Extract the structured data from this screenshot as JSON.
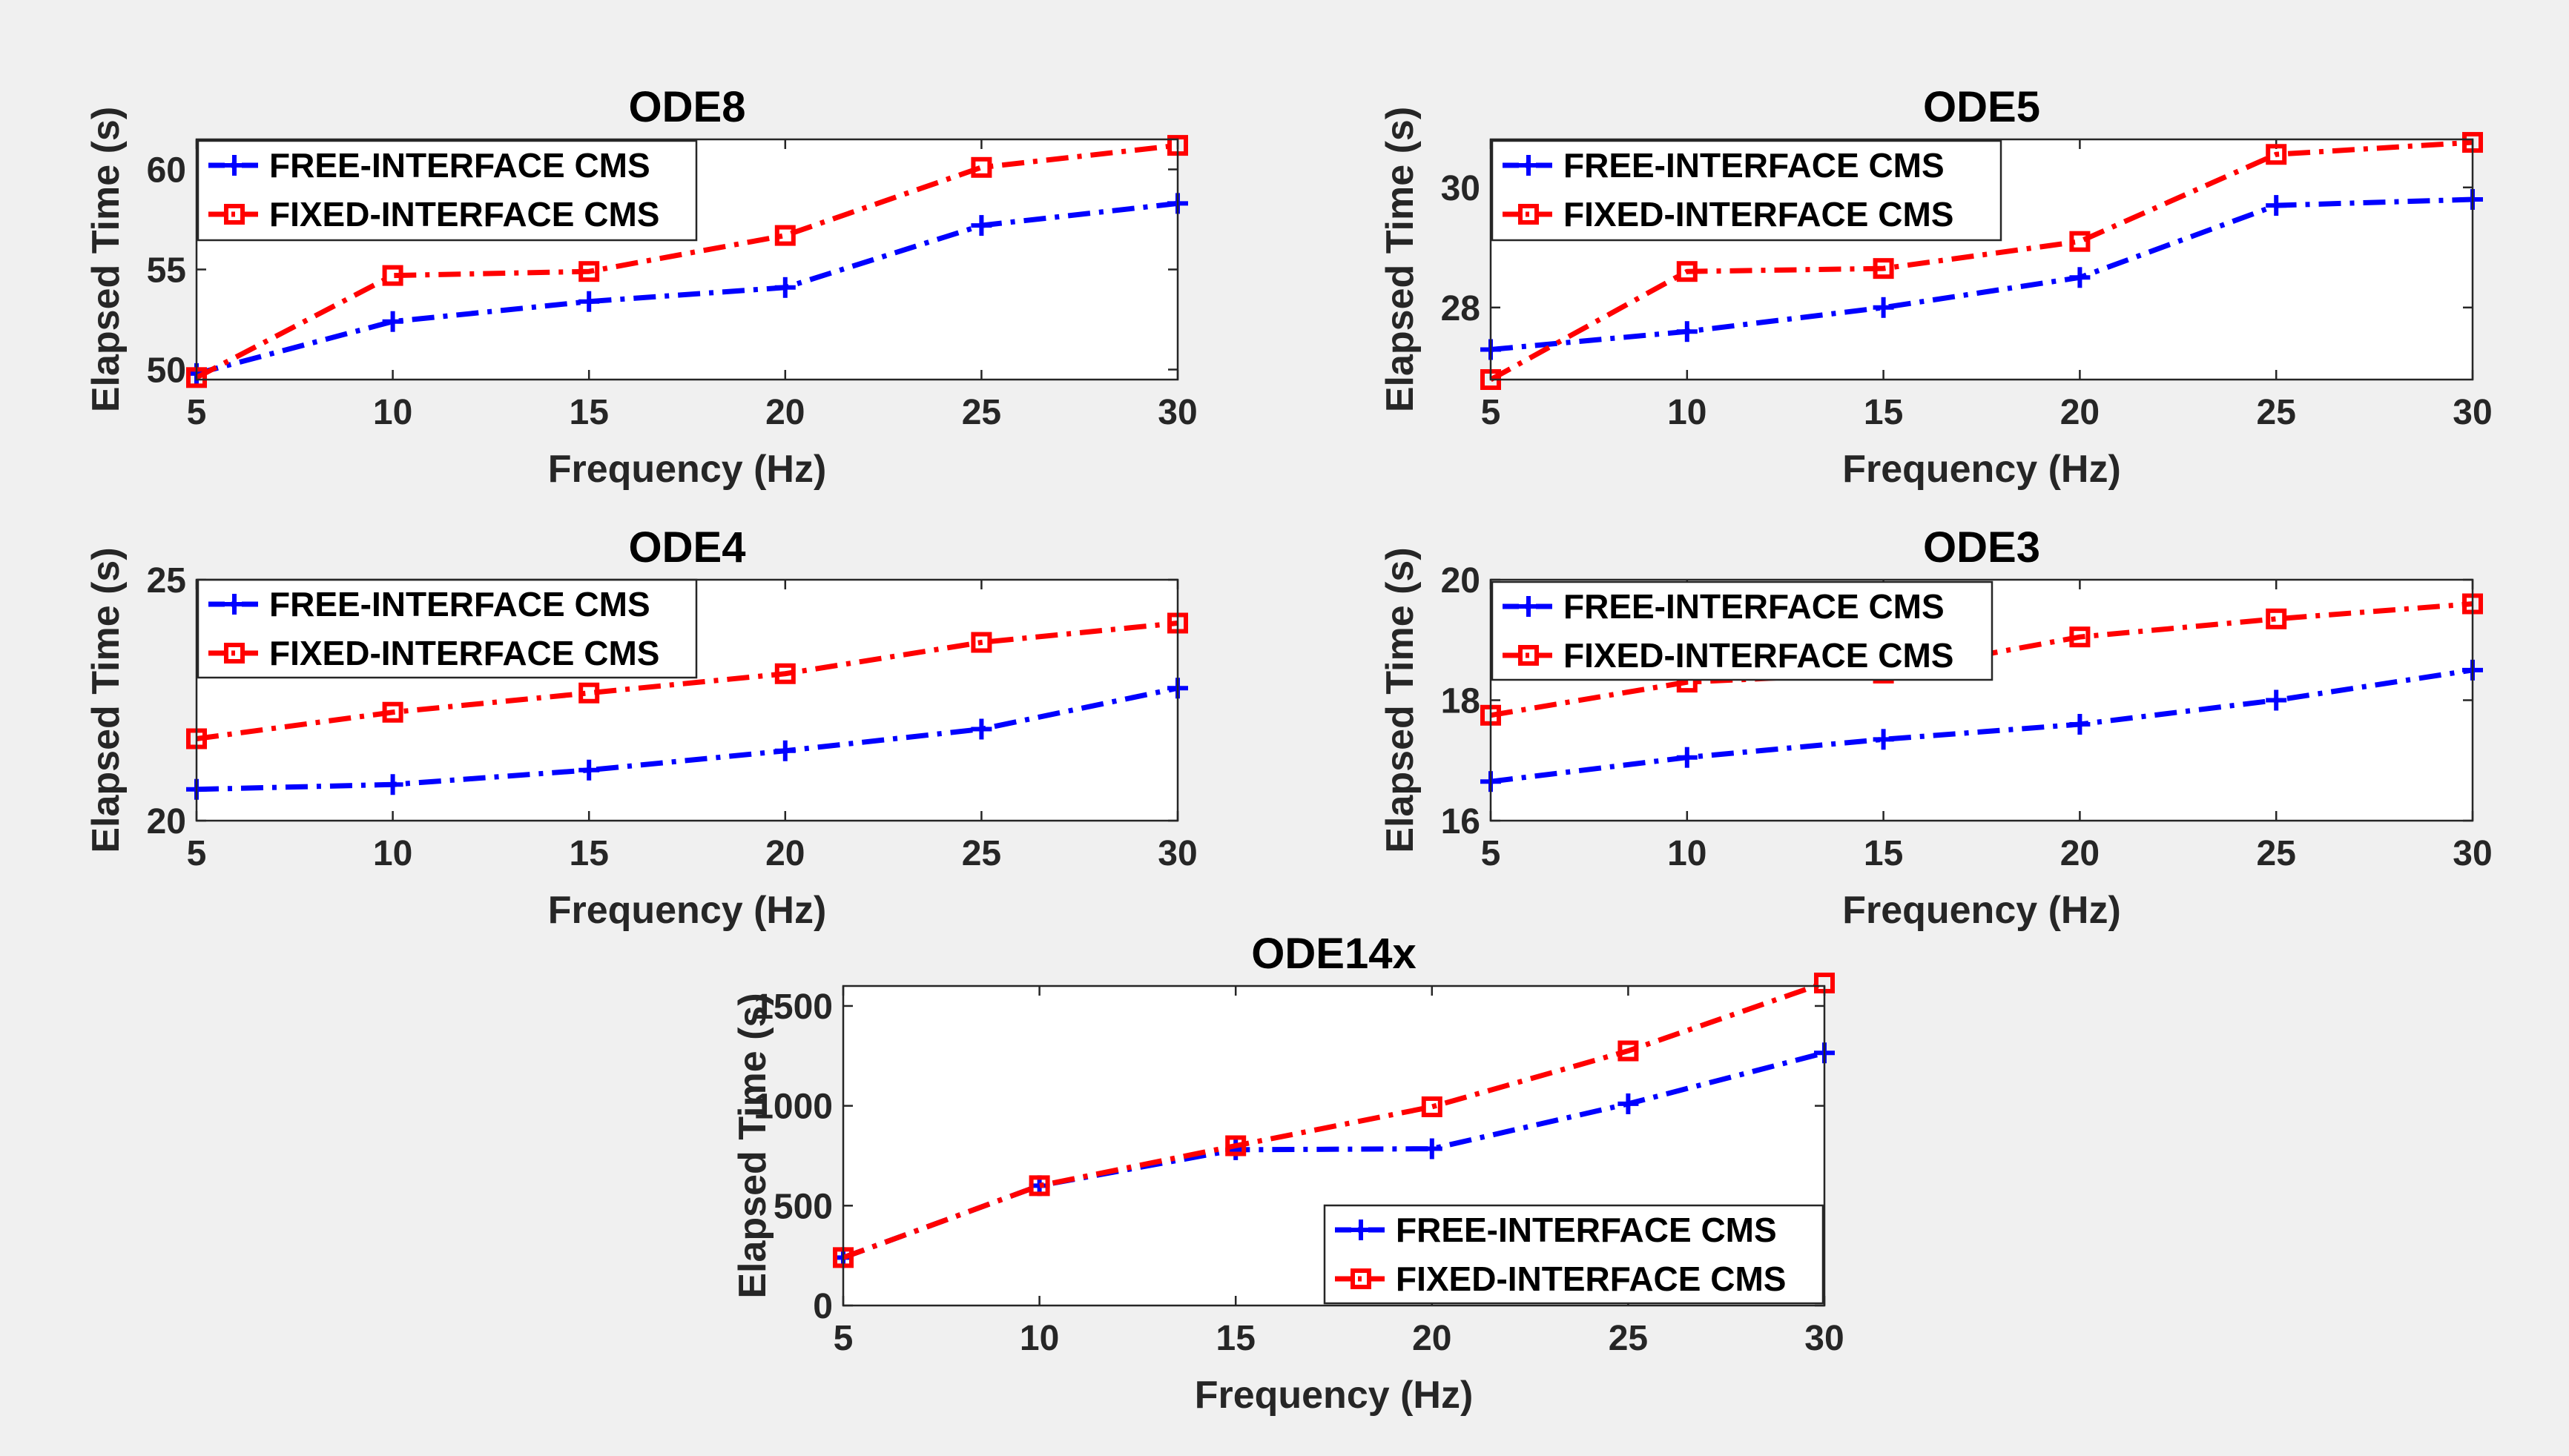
{
  "colors": {
    "figure_background": "#f0f0f0",
    "axes_background": "#ffffff",
    "axis": "#262626",
    "free_interface": "#0000ff",
    "fixed_interface": "#ff0000"
  },
  "chart_data": [
    {
      "type": "line",
      "title": "ODE8",
      "xlabel": "Frequency (Hz)",
      "ylabel": "Elapsed Time (s)",
      "x": [
        5,
        10,
        15,
        20,
        25,
        30
      ],
      "xlim": [
        5,
        30
      ],
      "ylim": [
        49.5,
        61.5
      ],
      "xticks": [
        5,
        10,
        15,
        20,
        25,
        30
      ],
      "yticks": [
        50,
        55,
        60
      ],
      "grid": false,
      "legend_position": "top-left",
      "series": [
        {
          "name": "FREE-INTERFACE CMS",
          "values": [
            49.8,
            52.4,
            53.4,
            54.1,
            57.2,
            58.3
          ],
          "color": "#0000ff",
          "marker": "plus",
          "line": "dash-dot"
        },
        {
          "name": "FIXED-INTERFACE CMS",
          "values": [
            49.6,
            54.7,
            54.9,
            56.7,
            60.1,
            61.2
          ],
          "color": "#ff0000",
          "marker": "square",
          "line": "dash-dot"
        }
      ]
    },
    {
      "type": "line",
      "title": "ODE5",
      "xlabel": "Frequency (Hz)",
      "ylabel": "Elapsed Time (s)",
      "x": [
        5,
        10,
        15,
        20,
        25,
        30
      ],
      "xlim": [
        5,
        30
      ],
      "ylim": [
        26.8,
        30.8
      ],
      "xticks": [
        5,
        10,
        15,
        20,
        25,
        30
      ],
      "yticks": [
        28,
        30
      ],
      "grid": false,
      "legend_position": "top-left",
      "series": [
        {
          "name": "FREE-INTERFACE CMS",
          "values": [
            27.3,
            27.6,
            28.0,
            28.5,
            29.7,
            29.8
          ],
          "color": "#0000ff",
          "marker": "plus",
          "line": "dash-dot"
        },
        {
          "name": "FIXED-INTERFACE CMS",
          "values": [
            26.8,
            28.6,
            28.65,
            29.1,
            30.55,
            30.75
          ],
          "color": "#ff0000",
          "marker": "square",
          "line": "dash-dot"
        }
      ]
    },
    {
      "type": "line",
      "title": "ODE4",
      "xlabel": "Frequency (Hz)",
      "ylabel": "Elapsed Time (s)",
      "x": [
        5,
        10,
        15,
        20,
        25,
        30
      ],
      "xlim": [
        5,
        30
      ],
      "ylim": [
        20,
        25
      ],
      "xticks": [
        5,
        10,
        15,
        20,
        25,
        30
      ],
      "yticks": [
        20,
        25
      ],
      "grid": false,
      "legend_position": "top-left",
      "series": [
        {
          "name": "FREE-INTERFACE CMS",
          "values": [
            20.65,
            20.75,
            21.05,
            21.45,
            21.9,
            22.75
          ],
          "color": "#0000ff",
          "marker": "plus",
          "line": "dash-dot"
        },
        {
          "name": "FIXED-INTERFACE CMS",
          "values": [
            21.7,
            22.25,
            22.65,
            23.05,
            23.7,
            24.1
          ],
          "color": "#ff0000",
          "marker": "square",
          "line": "dash-dot"
        }
      ]
    },
    {
      "type": "line",
      "title": "ODE3",
      "xlabel": "Frequency (Hz)",
      "ylabel": "Elapsed Time (s)",
      "x": [
        5,
        10,
        15,
        20,
        25,
        30
      ],
      "xlim": [
        5,
        30
      ],
      "ylim": [
        16,
        20
      ],
      "xticks": [
        5,
        10,
        15,
        20,
        25,
        30
      ],
      "yticks": [
        16,
        18,
        20
      ],
      "grid": false,
      "legend_position": "top-left",
      "series": [
        {
          "name": "FREE-INTERFACE CMS",
          "values": [
            16.65,
            17.05,
            17.35,
            17.6,
            18.0,
            18.5
          ],
          "color": "#0000ff",
          "marker": "plus",
          "line": "dash-dot"
        },
        {
          "name": "FIXED-INTERFACE CMS",
          "values": [
            17.75,
            18.3,
            18.45,
            19.05,
            19.35,
            19.6
          ],
          "color": "#ff0000",
          "marker": "square",
          "line": "dash-dot"
        }
      ]
    },
    {
      "type": "line",
      "title": "ODE14x",
      "xlabel": "Frequency (Hz)",
      "ylabel": "Elapsed Time (s)",
      "x": [
        5,
        10,
        15,
        20,
        25,
        30
      ],
      "xlim": [
        5,
        30
      ],
      "ylim": [
        0,
        1600
      ],
      "xticks": [
        5,
        10,
        15,
        20,
        25,
        30
      ],
      "yticks": [
        0,
        500,
        1000,
        1500
      ],
      "grid": false,
      "legend_position": "bottom-right",
      "series": [
        {
          "name": "FREE-INTERFACE CMS",
          "values": [
            240,
            600,
            780,
            785,
            1010,
            1265
          ],
          "color": "#0000ff",
          "marker": "plus",
          "line": "dash-dot"
        },
        {
          "name": "FIXED-INTERFACE CMS",
          "values": [
            240,
            600,
            800,
            995,
            1275,
            1615
          ],
          "color": "#ff0000",
          "marker": "square",
          "line": "dash-dot"
        }
      ]
    }
  ]
}
